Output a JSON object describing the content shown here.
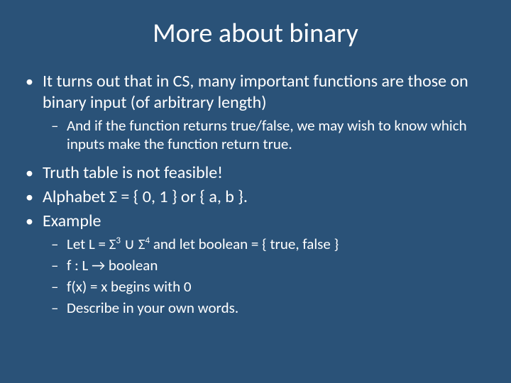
{
  "slide": {
    "title": "More about binary",
    "background_color": "#2a5278",
    "text_color": "#ffffff",
    "title_fontsize": 38,
    "body_fontsize_l1": 24,
    "body_fontsize_l2": 21,
    "bullets": {
      "b1": "It turns out that in CS, many important functions are those on binary input (of arbitrary length)",
      "b1a": "And if the function returns true/false, we may wish to know which inputs make the function return true.",
      "b2": "Truth table is not feasible!",
      "b3": "Alphabet Σ = { 0, 1 } or { a, b }.",
      "b4": "Example",
      "b4a_pre": "Let L = Σ",
      "b4a_sup1": "3",
      "b4a_mid": " ∪ Σ",
      "b4a_sup2": "4",
      "b4a_post": "   and let   boolean = { true, false }",
      "b4b": "f :  L → boolean",
      "b4c": "f(x) = x begins with 0",
      "b4d": "Describe in your own words."
    }
  }
}
